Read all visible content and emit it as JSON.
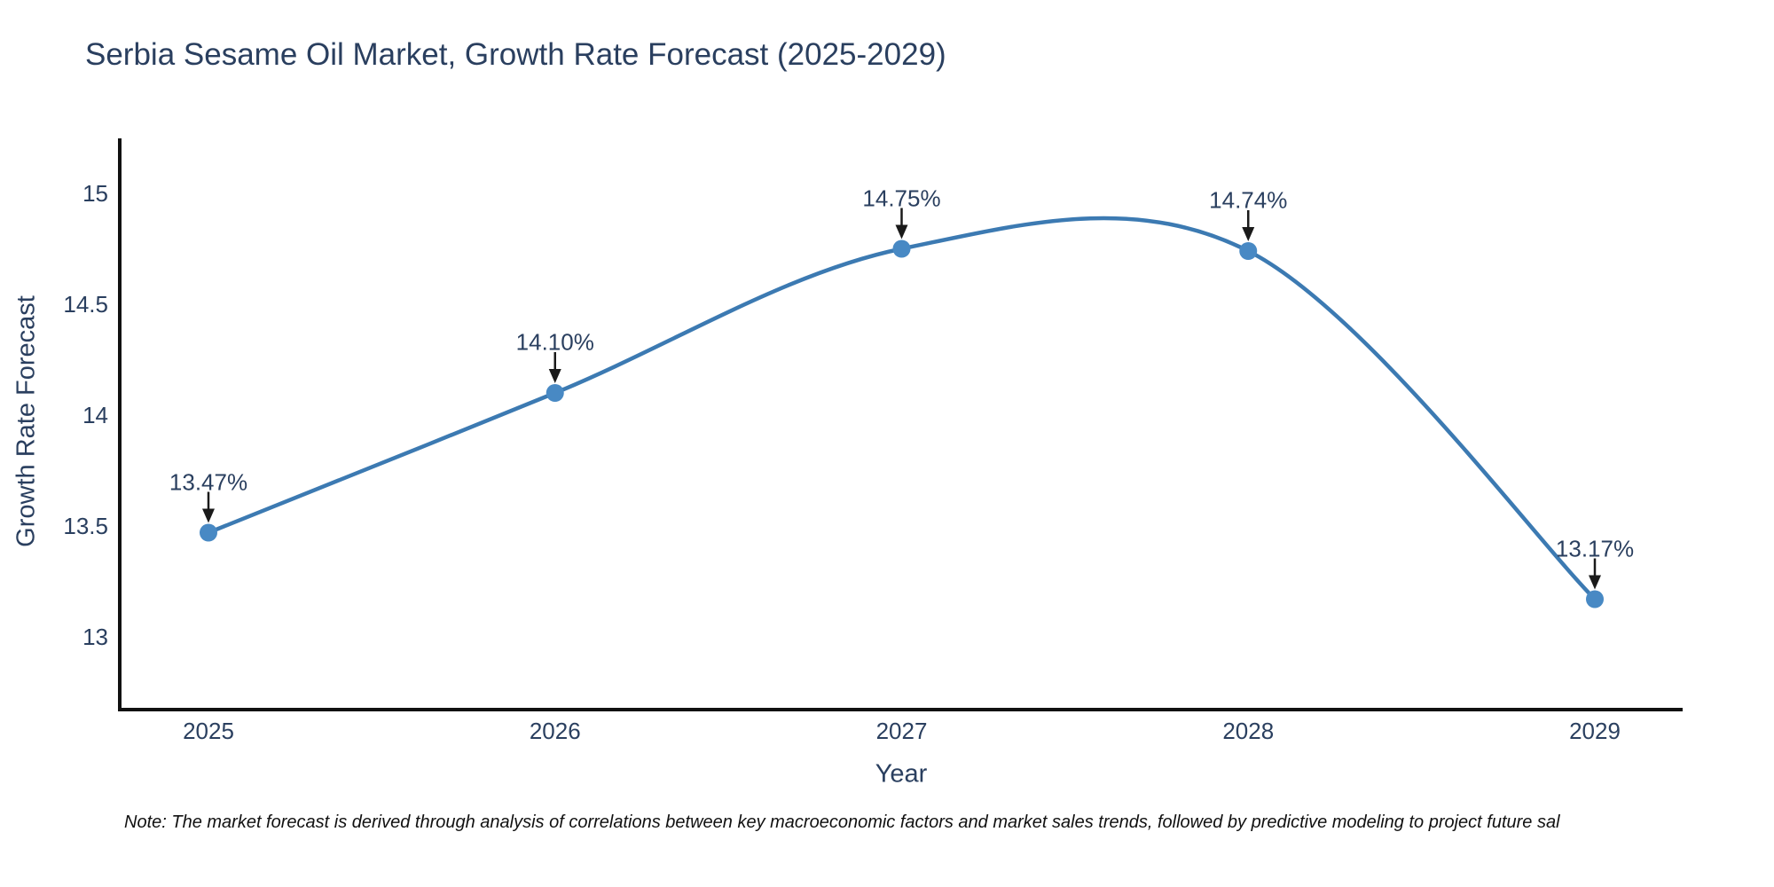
{
  "title": "Serbia Sesame Oil Market, Growth Rate Forecast (2025-2029)",
  "note": "Note: The market forecast is derived through analysis of correlations between key macroeconomic factors and market sales trends, followed by predictive modeling to project future sal",
  "chart_data": {
    "type": "line",
    "title": "Serbia Sesame Oil Market, Growth Rate Forecast (2025-2029)",
    "xlabel": "Year",
    "ylabel": "Growth Rate Forecast",
    "x": [
      2025,
      2026,
      2027,
      2028,
      2029
    ],
    "series": [
      {
        "name": "Growth Rate Forecast",
        "values": [
          13.47,
          14.1,
          14.75,
          14.74,
          13.17
        ]
      }
    ],
    "point_labels": [
      "13.47%",
      "14.10%",
      "14.75%",
      "14.74%",
      "13.17%"
    ],
    "xticks": [
      "2025",
      "2026",
      "2027",
      "2028",
      "2029"
    ],
    "yticks": [
      {
        "label": "13",
        "value": 13
      },
      {
        "label": "13.5",
        "value": 13.5
      },
      {
        "label": "14",
        "value": 14
      },
      {
        "label": "14.5",
        "value": 14.5
      },
      {
        "label": "15",
        "value": 15
      }
    ],
    "ylim": [
      12.67,
      15.24
    ],
    "line_shape": "spline",
    "grid": false,
    "legend": "none",
    "annotations_arrows": true,
    "colors": {
      "line": "#3c7ab2",
      "marker": "#4889c4",
      "axis": "#111111",
      "arrow": "#1a1a1a",
      "text": "#2a3f5f",
      "note_text": "#111111",
      "background": "#ffffff"
    }
  }
}
